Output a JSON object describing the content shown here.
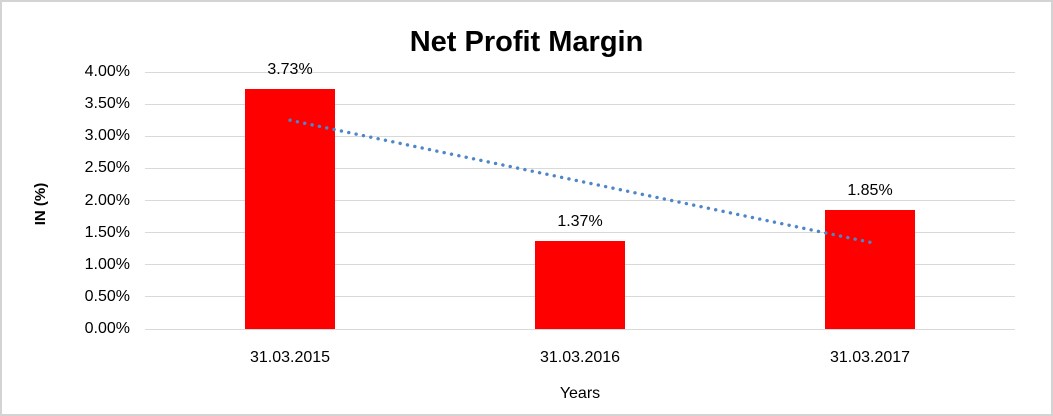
{
  "title": "Net Profit Margin",
  "colors": {
    "bar": "#ff0000",
    "trendline": "#4e86c8",
    "gridline": "#d9d9d9",
    "border": "#d3d3d3",
    "text": "#000000"
  },
  "chart_data": {
    "type": "bar",
    "title": "Net Profit Margin",
    "categories": [
      "31.03.2015",
      "31.03.2016",
      "31.03.2017"
    ],
    "values": [
      3.73,
      1.37,
      1.85
    ],
    "data_labels": [
      "3.73%",
      "1.37%",
      "1.85%"
    ],
    "xlabel": "Years",
    "ylabel": "IN (%)",
    "ylim": [
      0,
      4
    ],
    "ytick_step": 0.5,
    "ytick_labels": [
      "0.00%",
      "0.50%",
      "1.00%",
      "1.50%",
      "2.00%",
      "2.50%",
      "3.00%",
      "3.50%",
      "4.00%"
    ],
    "grid": true,
    "legend": "none",
    "bar_color": "#ff0000",
    "trendline": {
      "style": "dotted",
      "color": "#4e86c8",
      "start": {
        "index": 0,
        "value": 3.25
      },
      "end": {
        "index": 2,
        "value": 1.35
      }
    }
  }
}
